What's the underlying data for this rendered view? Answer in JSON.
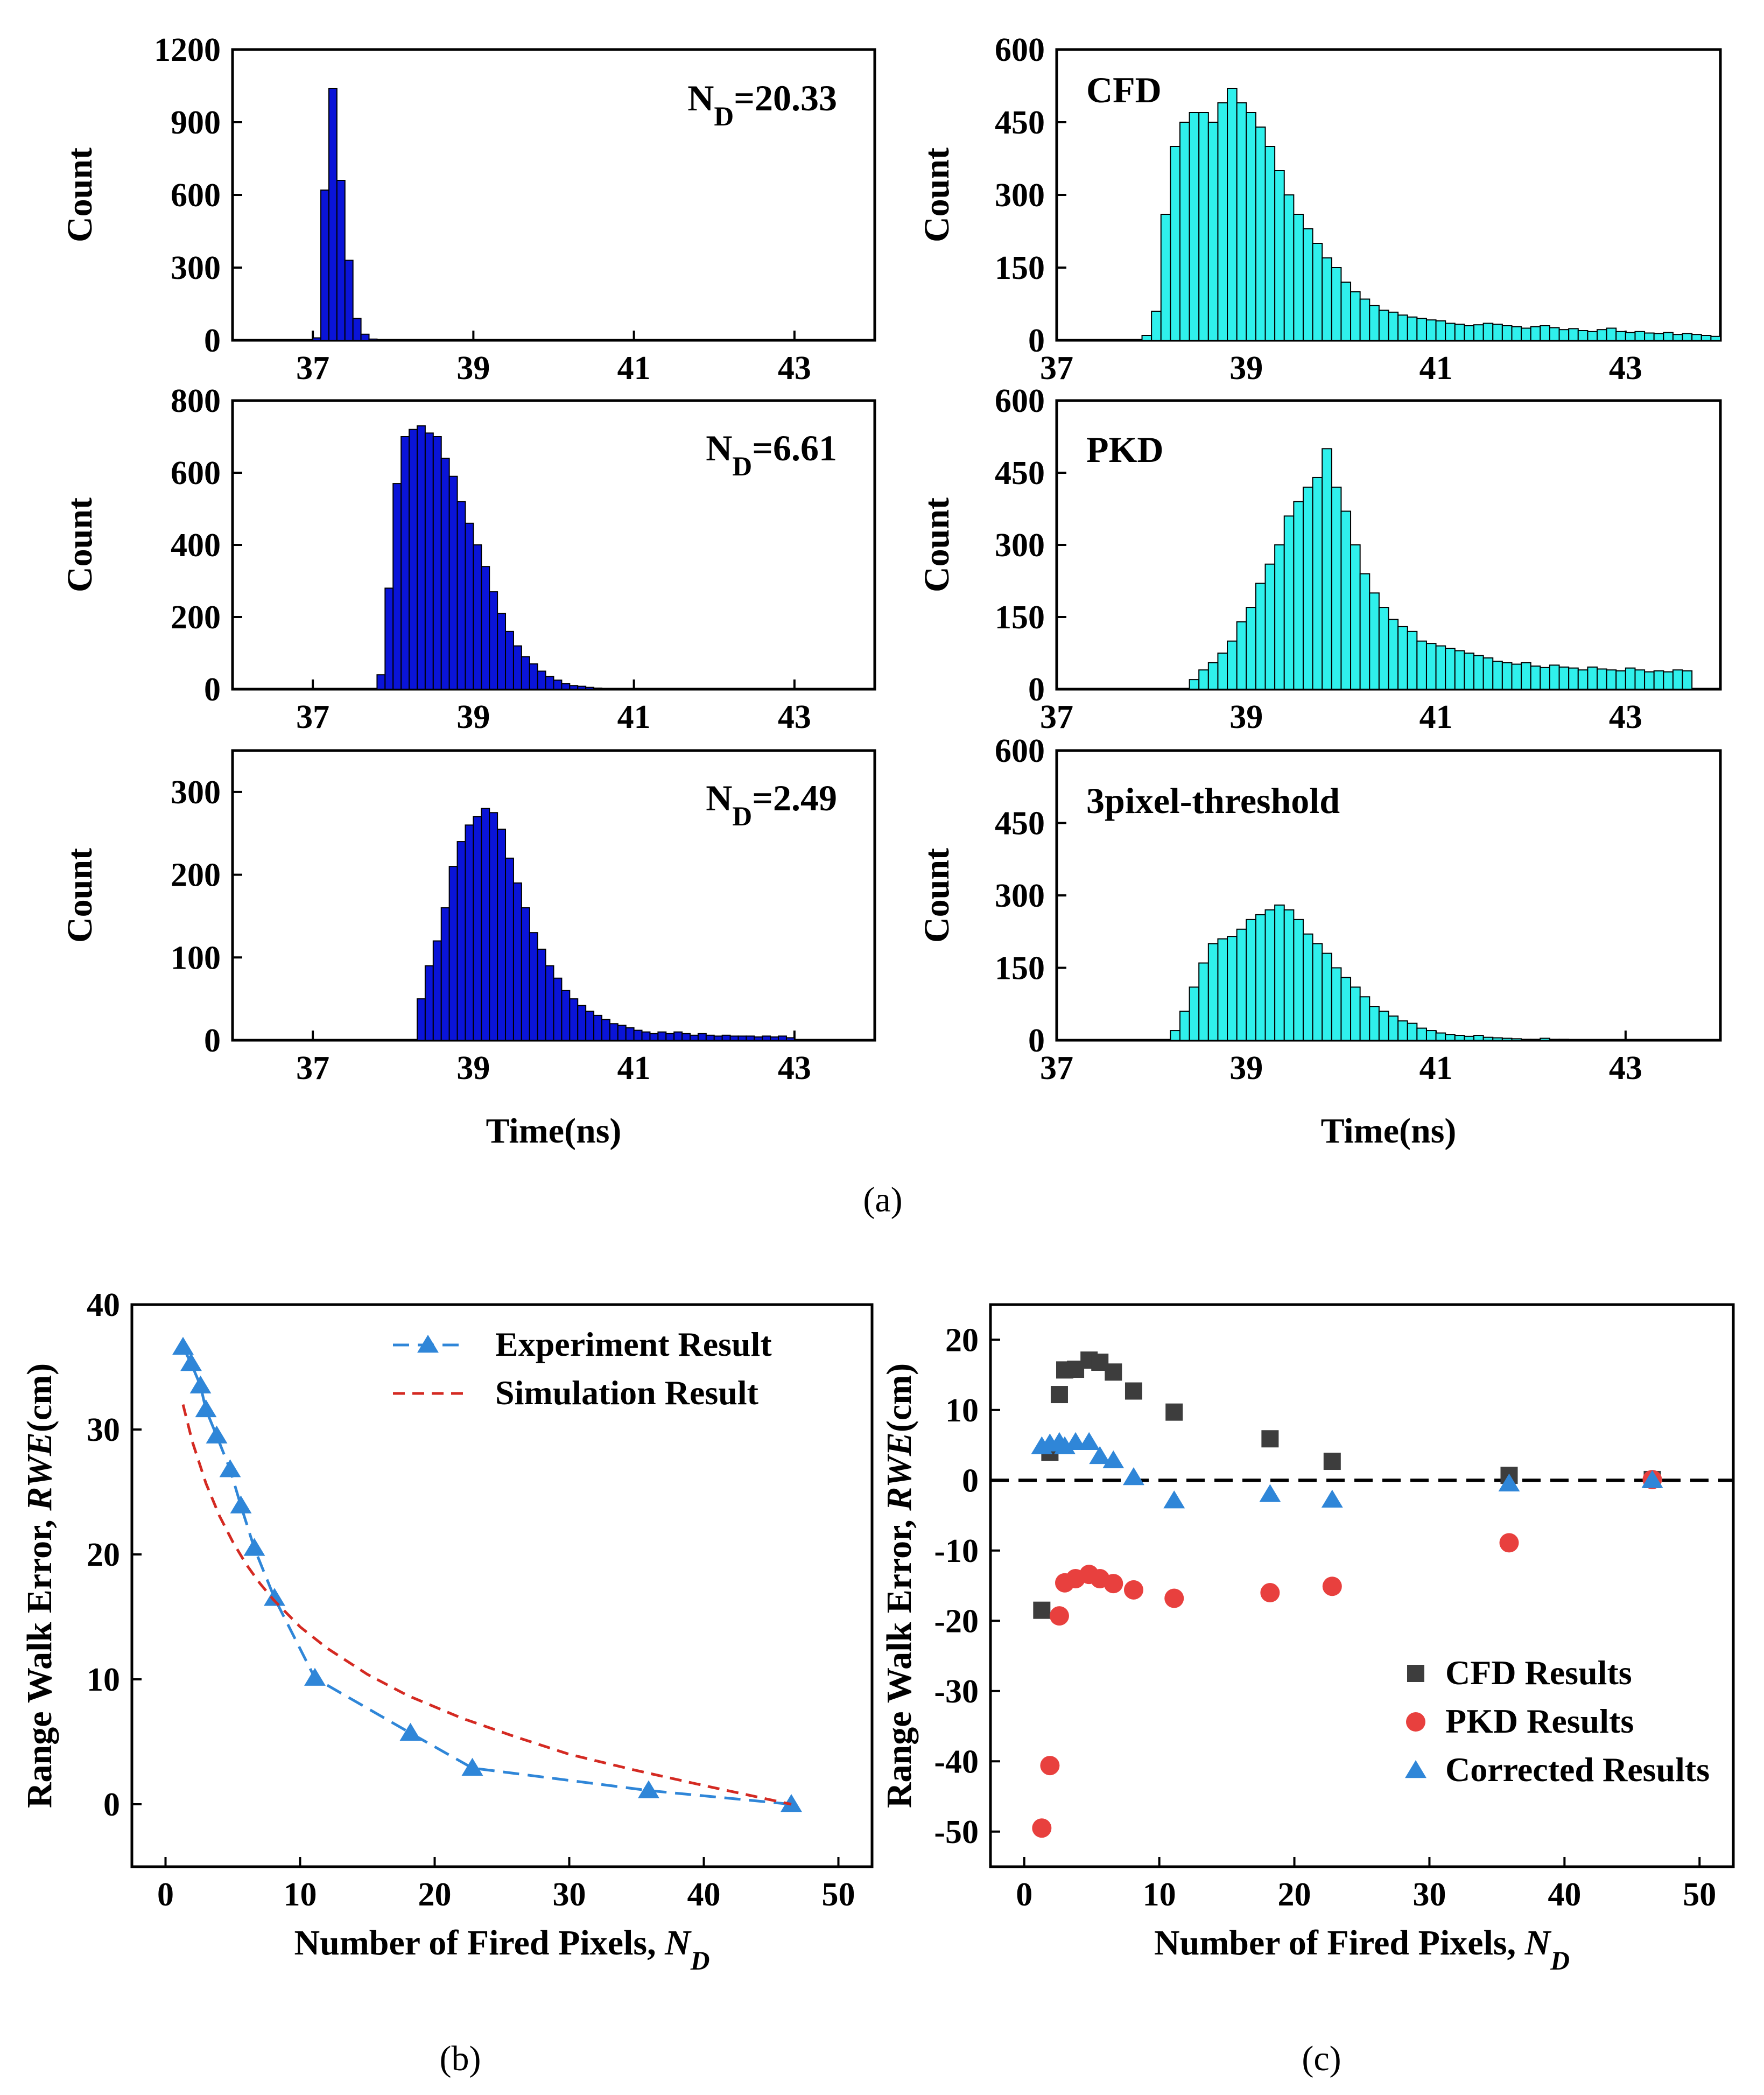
{
  "figure_labels": {
    "a": "(a)",
    "b": "(b)",
    "c": "(c)"
  },
  "chart_data": [
    {
      "type": "bar",
      "panel": "a-left-1",
      "title": "",
      "annotation": "N_D=20.33",
      "xlabel": "",
      "ylabel": "Count",
      "xlim": [
        36,
        44
      ],
      "ylim": [
        0,
        1200
      ],
      "xticks": [
        37,
        39,
        41,
        43
      ],
      "yticks": [
        0,
        300,
        600,
        900,
        1200
      ],
      "bin_start": 37.0,
      "bin_width": 0.1,
      "values": [
        10,
        620,
        1040,
        660,
        330,
        90,
        25,
        5
      ],
      "color": "#0a14d8"
    },
    {
      "type": "bar",
      "panel": "a-left-2",
      "annotation": "N_D=6.61",
      "xlabel": "",
      "ylabel": "Count",
      "xlim": [
        36,
        44
      ],
      "ylim": [
        0,
        800
      ],
      "xticks": [
        37,
        39,
        41,
        43
      ],
      "yticks": [
        0,
        200,
        400,
        600,
        800
      ],
      "bin_start": 37.8,
      "bin_width": 0.1,
      "values": [
        40,
        280,
        570,
        700,
        720,
        730,
        710,
        700,
        640,
        590,
        520,
        460,
        400,
        340,
        270,
        210,
        160,
        120,
        90,
        70,
        50,
        35,
        25,
        15,
        10,
        8,
        5,
        3,
        2,
        2
      ],
      "color": "#0a14d8"
    },
    {
      "type": "bar",
      "panel": "a-left-3",
      "annotation": "N_D=2.49",
      "xlabel": "Time(ns)",
      "ylabel": "Count",
      "xlim": [
        36,
        44
      ],
      "ylim": [
        0,
        350
      ],
      "xticks": [
        37,
        39,
        41,
        43
      ],
      "yticks": [
        0,
        100,
        200,
        300
      ],
      "bin_start": 38.3,
      "bin_width": 0.1,
      "values": [
        50,
        90,
        120,
        160,
        210,
        240,
        260,
        270,
        280,
        275,
        255,
        220,
        190,
        160,
        130,
        110,
        90,
        75,
        60,
        50,
        42,
        35,
        30,
        25,
        20,
        18,
        15,
        12,
        10,
        8,
        10,
        8,
        10,
        8,
        6,
        8,
        6,
        5,
        6,
        5,
        5,
        5,
        4,
        5,
        4,
        5,
        3
      ],
      "color": "#0a14d8"
    },
    {
      "type": "bar",
      "panel": "a-right-1",
      "annotation": "CFD",
      "xlabel": "",
      "ylabel": "Count",
      "xlim": [
        37,
        44
      ],
      "ylim": [
        0,
        600
      ],
      "xticks": [
        37,
        39,
        41,
        43
      ],
      "yticks": [
        0,
        150,
        300,
        450,
        600
      ],
      "bin_start": 37.9,
      "bin_width": 0.1,
      "values": [
        10,
        60,
        260,
        400,
        450,
        470,
        470,
        450,
        490,
        520,
        490,
        470,
        440,
        400,
        350,
        300,
        260,
        230,
        200,
        170,
        150,
        120,
        100,
        85,
        72,
        62,
        58,
        52,
        48,
        45,
        42,
        40,
        35,
        33,
        30,
        32,
        35,
        33,
        30,
        28,
        25,
        28,
        30,
        26,
        22,
        24,
        20,
        18,
        22,
        25,
        18,
        16,
        18,
        15,
        14,
        16,
        12,
        14,
        12,
        10,
        8
      ],
      "color": "#2ff0ec"
    },
    {
      "type": "bar",
      "panel": "a-right-2",
      "annotation": "PKD",
      "xlabel": "",
      "ylabel": "Count",
      "xlim": [
        37,
        44
      ],
      "ylim": [
        0,
        600
      ],
      "xticks": [
        37,
        39,
        41,
        43
      ],
      "yticks": [
        0,
        150,
        300,
        450,
        600
      ],
      "bin_start": 38.4,
      "bin_width": 0.1,
      "values": [
        20,
        40,
        55,
        75,
        100,
        140,
        170,
        220,
        260,
        300,
        360,
        390,
        420,
        440,
        500,
        420,
        370,
        300,
        240,
        200,
        170,
        145,
        130,
        120,
        100,
        95,
        90,
        85,
        80,
        75,
        70,
        65,
        58,
        55,
        52,
        55,
        48,
        45,
        50,
        46,
        44,
        40,
        46,
        42,
        40,
        38,
        44,
        40,
        36,
        38,
        36,
        40,
        38
      ],
      "color": "#2ff0ec"
    },
    {
      "type": "bar",
      "panel": "a-right-3",
      "annotation": "3pixel-threshold",
      "xlabel": "Time(ns)",
      "ylabel": "Count",
      "xlim": [
        37,
        44
      ],
      "ylim": [
        0,
        600
      ],
      "xticks": [
        37,
        39,
        41,
        43
      ],
      "yticks": [
        0,
        150,
        300,
        450,
        600
      ],
      "bin_start": 38.2,
      "bin_width": 0.1,
      "values": [
        20,
        60,
        110,
        160,
        200,
        210,
        215,
        230,
        250,
        260,
        270,
        280,
        270,
        250,
        220,
        200,
        180,
        150,
        130,
        110,
        90,
        70,
        60,
        50,
        40,
        35,
        25,
        20,
        15,
        12,
        10,
        8,
        10,
        6,
        5,
        4,
        3,
        2,
        2,
        4,
        2,
        2
      ],
      "color": "#2ff0ec"
    },
    {
      "type": "line",
      "panel": "b",
      "xlabel": "Number of Fired Pixels, N_D",
      "ylabel": "Range Walk Error, RWE(cm)",
      "xlim": [
        -2.5,
        52.5
      ],
      "ylim": [
        -5,
        40
      ],
      "xticks": [
        0,
        10,
        20,
        30,
        40,
        50
      ],
      "yticks": [
        0,
        10,
        20,
        30,
        40
      ],
      "legend_position": "top-right",
      "series": [
        {
          "name": "Experiment Result",
          "style": "dashed-line-triangle-markers",
          "color": "#2f86d8",
          "x": [
            1.3,
            1.9,
            2.6,
            3.0,
            3.8,
            4.8,
            5.6,
            6.6,
            8.1,
            11.1,
            18.2,
            22.8,
            35.9,
            46.5
          ],
          "y": [
            36.6,
            35.3,
            33.5,
            31.6,
            29.5,
            26.8,
            23.9,
            20.5,
            16.5,
            10.1,
            5.7,
            2.9,
            1.1,
            0.0
          ]
        },
        {
          "name": "Simulation Result",
          "style": "dashed-line",
          "color": "#d42a22",
          "x": [
            1.3,
            2.0,
            3.0,
            4.0,
            5.0,
            6.0,
            7.0,
            8.0,
            10.0,
            12.0,
            15.0,
            18.0,
            22.0,
            26.0,
            30.0,
            35.0,
            40.0,
            46.5
          ],
          "y": [
            32.0,
            29.0,
            25.7,
            23.1,
            21.0,
            19.2,
            17.7,
            16.4,
            14.2,
            12.5,
            10.4,
            8.7,
            6.9,
            5.4,
            4.0,
            2.7,
            1.5,
            0.0
          ]
        }
      ]
    },
    {
      "type": "scatter",
      "panel": "c",
      "xlabel": "Number of Fired Pixels, N_D",
      "ylabel": "Range Walk Error, RWE(cm)",
      "xlim": [
        -2.5,
        52.5
      ],
      "ylim": [
        -55,
        25
      ],
      "xticks": [
        0,
        10,
        20,
        30,
        40,
        50
      ],
      "yticks": [
        -50,
        -40,
        -30,
        -20,
        -10,
        0,
        10,
        20
      ],
      "reference_line_y": 0,
      "legend_position": "bottom-right",
      "series": [
        {
          "name": "CFD Results",
          "marker": "square",
          "color": "#3d3d3d",
          "x": [
            1.3,
            1.9,
            2.6,
            3.0,
            3.8,
            4.8,
            5.6,
            6.6,
            8.1,
            11.1,
            18.2,
            22.8,
            35.9,
            46.5
          ],
          "y": [
            -18.5,
            4.0,
            12.2,
            15.7,
            15.8,
            17.1,
            16.8,
            15.4,
            12.7,
            9.7,
            5.9,
            2.7,
            0.7,
            0.1
          ]
        },
        {
          "name": "PKD Results",
          "marker": "circle",
          "color": "#e8403e",
          "x": [
            1.3,
            1.9,
            2.6,
            3.0,
            3.8,
            4.8,
            5.6,
            6.6,
            8.1,
            11.1,
            18.2,
            22.8,
            35.9,
            46.5
          ],
          "y": [
            -49.5,
            -40.6,
            -19.3,
            -14.6,
            -14.0,
            -13.4,
            -14.0,
            -14.7,
            -15.6,
            -16.8,
            -16.0,
            -15.1,
            -8.9,
            0.1
          ]
        },
        {
          "name": "Corrected Results",
          "marker": "triangle",
          "color": "#2f86d8",
          "x": [
            1.3,
            1.9,
            2.6,
            3.0,
            3.8,
            4.8,
            5.6,
            6.6,
            8.1,
            11.1,
            18.2,
            22.8,
            35.9,
            46.5
          ],
          "y": [
            4.8,
            5.2,
            5.4,
            4.8,
            5.4,
            5.4,
            3.4,
            2.8,
            0.4,
            -2.9,
            -2.0,
            -2.8,
            -0.5,
            0.0
          ]
        }
      ]
    }
  ]
}
